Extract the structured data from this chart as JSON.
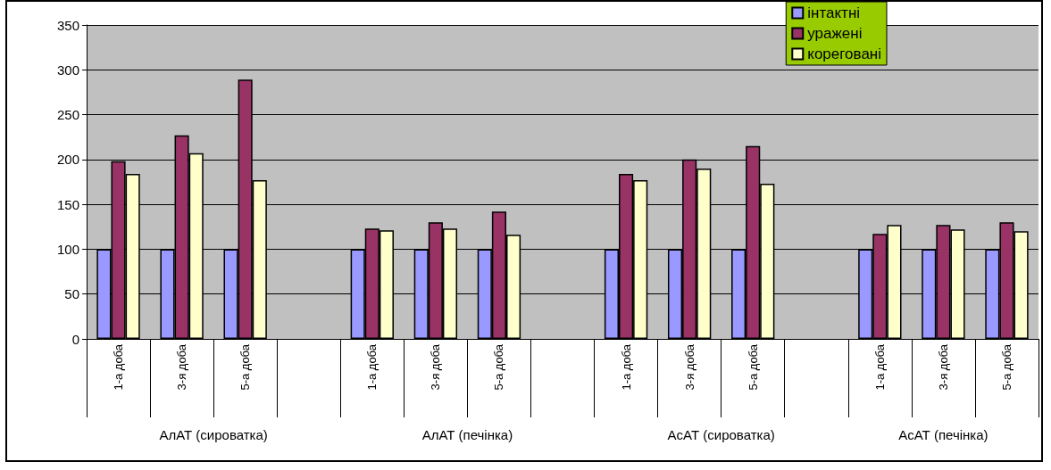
{
  "chart_data": {
    "type": "bar",
    "categories": [
      "1-а доба",
      "3-я доба",
      "5-а доба",
      null,
      "1-а доба",
      "3-я доба",
      "5-а доба",
      null,
      "1-а доба",
      "3-я доба",
      "5-а доба",
      null,
      "1-а доба",
      "3-я доба",
      "5-а доба"
    ],
    "series": [
      {
        "name": "інтактні",
        "color": "#9999ff",
        "values": [
          100,
          100,
          100,
          null,
          100,
          100,
          100,
          null,
          100,
          100,
          100,
          null,
          100,
          100,
          100
        ]
      },
      {
        "name": "уражені",
        "color": "#993366",
        "values": [
          198,
          227,
          289,
          null,
          123,
          130,
          142,
          null,
          184,
          200,
          215,
          null,
          117,
          127,
          130
        ]
      },
      {
        "name": "кореговані",
        "color": "#ffffcc",
        "values": [
          184,
          207,
          177,
          null,
          121,
          123,
          116,
          null,
          177,
          190,
          173,
          null,
          127,
          122,
          120
        ]
      }
    ],
    "annotations": [
      "АлАТ (сироватка)",
      "АлАТ (печінка)",
      "АсАТ (сироватка)",
      "АсАТ (печінка)"
    ],
    "ylim": [
      0,
      350
    ],
    "yticks": [
      0,
      50,
      100,
      150,
      200,
      250,
      300,
      350
    ],
    "grid": "y",
    "legend": "top right"
  }
}
